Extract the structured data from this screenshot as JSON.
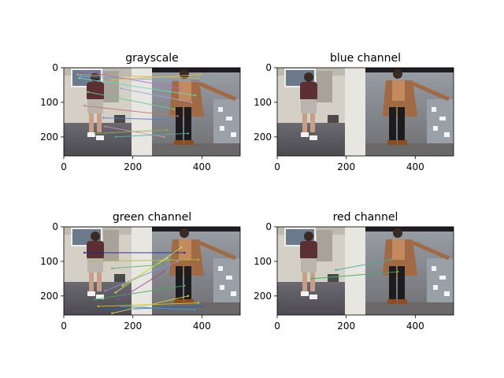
{
  "figure": {
    "background": "#ffffff"
  },
  "chart_data": [
    {
      "type": "image",
      "title": "grayscale",
      "xlim": [
        0,
        511
      ],
      "ylim": [
        0,
        255
      ],
      "xticks": [
        0,
        200,
        400
      ],
      "yticks": [
        0,
        100,
        200
      ],
      "xticklabels": [
        "0",
        "200",
        "400"
      ],
      "yticklabels": [
        "0",
        "100",
        "200"
      ],
      "matches": [
        [
          40,
          20,
          390,
          30
        ],
        [
          45,
          30,
          380,
          80
        ],
        [
          48,
          25,
          395,
          40
        ],
        [
          60,
          10,
          340,
          60
        ],
        [
          70,
          70,
          320,
          120
        ],
        [
          60,
          110,
          330,
          140
        ],
        [
          90,
          190,
          300,
          180
        ],
        [
          115,
          145,
          300,
          150
        ],
        [
          120,
          170,
          290,
          200
        ],
        [
          150,
          200,
          360,
          190
        ],
        [
          165,
          60,
          370,
          100
        ],
        [
          140,
          35,
          395,
          20
        ]
      ],
      "match_colors": [
        "#c9b26a",
        "#63d9c4",
        "#7aa5e0",
        "#b06ad0",
        "#6ac98c",
        "#c97a6a",
        "#8ab34a",
        "#5a7ac9",
        "#d98ab0",
        "#4fb3a3",
        "#a0a0e0",
        "#e0c040"
      ]
    },
    {
      "type": "image",
      "title": "blue channel",
      "xlim": [
        0,
        511
      ],
      "ylim": [
        0,
        255
      ],
      "xticks": [
        0,
        200,
        400
      ],
      "yticks": [
        0,
        100,
        200
      ],
      "xticklabels": [
        "0",
        "200",
        "400"
      ],
      "yticklabels": [
        "0",
        "100",
        "200"
      ],
      "matches": [],
      "match_colors": []
    },
    {
      "type": "image",
      "title": "green channel",
      "xlim": [
        0,
        511
      ],
      "ylim": [
        0,
        255
      ],
      "xticks": [
        0,
        200,
        400
      ],
      "yticks": [
        0,
        100,
        200
      ],
      "xticklabels": [
        "0",
        "200",
        "400"
      ],
      "yticklabels": [
        "0",
        "100",
        "200"
      ],
      "matches": [
        [
          60,
          75,
          350,
          75
        ],
        [
          80,
          100,
          390,
          95
        ],
        [
          90,
          210,
          350,
          170
        ],
        [
          100,
          230,
          390,
          220
        ],
        [
          120,
          240,
          400,
          230
        ],
        [
          140,
          250,
          360,
          200
        ],
        [
          150,
          190,
          340,
          60
        ],
        [
          160,
          210,
          290,
          130
        ],
        [
          165,
          230,
          380,
          240
        ],
        [
          170,
          170,
          300,
          90
        ],
        [
          140,
          120,
          280,
          110
        ],
        [
          120,
          185,
          330,
          100
        ]
      ],
      "match_colors": [
        "#20209a",
        "#b0c040",
        "#3ab05a",
        "#d0c020",
        "#2060d0",
        "#e0d040",
        "#c0e060",
        "#a040a0",
        "#40a0d0",
        "#d0e040",
        "#60b060",
        "#9090e0"
      ]
    },
    {
      "type": "image",
      "title": "red channel",
      "xlim": [
        0,
        511
      ],
      "ylim": [
        0,
        255
      ],
      "xticks": [
        0,
        200,
        400
      ],
      "yticks": [
        0,
        100,
        200
      ],
      "xticklabels": [
        "0",
        "200",
        "400"
      ],
      "yticklabels": [
        "0",
        "100",
        "200"
      ],
      "matches": [
        [
          100,
          150,
          350,
          130
        ],
        [
          170,
          125,
          330,
          95
        ]
      ],
      "match_colors": [
        "#40b060",
        "#3ab0a0"
      ]
    }
  ]
}
